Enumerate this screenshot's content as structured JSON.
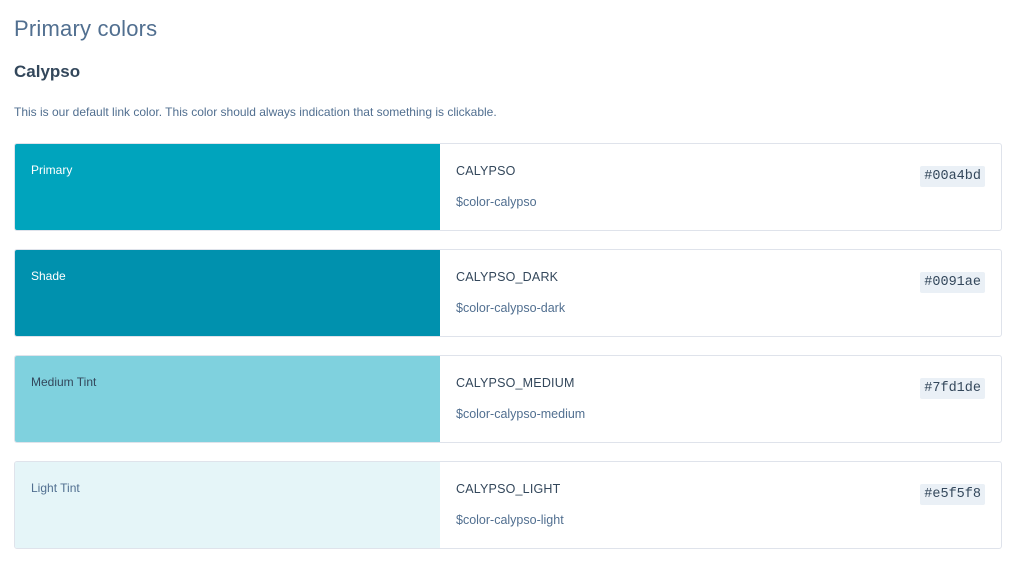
{
  "section_title": "Primary colors",
  "group_title": "Calypso",
  "description": "This is our default link color. This color should always indication that something is clickable.",
  "swatches": [
    {
      "label": "Primary",
      "name": "CALYPSO",
      "variable": "$color-calypso",
      "hex": "#00a4bd",
      "swatch_color": "#00a4bd",
      "label_color": "#ffffff"
    },
    {
      "label": "Shade",
      "name": "CALYPSO_DARK",
      "variable": "$color-calypso-dark",
      "hex": "#0091ae",
      "swatch_color": "#0091ae",
      "label_color": "#ffffff"
    },
    {
      "label": "Medium Tint",
      "name": "CALYPSO_MEDIUM",
      "variable": "$color-calypso-medium",
      "hex": "#7fd1de",
      "swatch_color": "#7fd1de",
      "label_color": "#33475b"
    },
    {
      "label": "Light Tint",
      "name": "CALYPSO_LIGHT",
      "variable": "$color-calypso-light",
      "hex": "#e5f5f8",
      "swatch_color": "#e5f5f8",
      "label_color": "#516f90"
    }
  ]
}
